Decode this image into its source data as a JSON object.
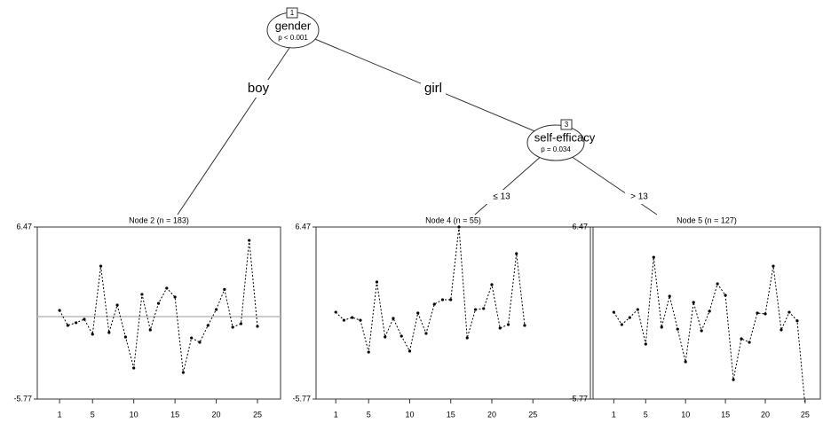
{
  "nodes": [
    {
      "id": "1",
      "label": "gender",
      "p": "p < 0.001"
    },
    {
      "id": "3",
      "label": "self-efficacy",
      "p": "p = 0.034"
    }
  ],
  "edges": [
    {
      "label": "boy"
    },
    {
      "label": "girl"
    },
    {
      "label": "≤ 13"
    },
    {
      "label": "> 13"
    }
  ],
  "chart_data": [
    {
      "type": "line",
      "title": "Node 2 (n = 183)",
      "color": "#000000",
      "x": [
        1,
        2,
        3,
        4,
        5,
        6,
        7,
        8,
        9,
        10,
        11,
        12,
        13,
        14,
        15,
        16,
        17,
        18,
        19,
        20,
        21,
        22,
        23,
        24,
        25
      ],
      "values": [
        0.54,
        -0.53,
        -0.34,
        -0.09,
        -1.16,
        3.69,
        -1.04,
        0.92,
        -1.35,
        -3.56,
        1.68,
        -0.85,
        1.04,
        2.12,
        1.49,
        -3.88,
        -1.42,
        -1.73,
        -0.53,
        0.6,
        2.03,
        -0.66,
        -0.41,
        5.52,
        -0.6
      ],
      "reference_line": 0.1,
      "xlim": [
        -1.7,
        27.8
      ],
      "ylim": [
        -5.77,
        6.47
      ],
      "xticks": [
        1,
        5,
        10,
        15,
        20,
        25
      ],
      "yticks": [
        -5.77,
        6.47
      ]
    },
    {
      "type": "line",
      "title": "Node 4 (n = 55)",
      "color": "#000000",
      "x": [
        1,
        2,
        3,
        4,
        5,
        6,
        7,
        8,
        9,
        10,
        11,
        12,
        13,
        14,
        15,
        16,
        17,
        18,
        19,
        20,
        21,
        22,
        23,
        24
      ],
      "values": [
        0.41,
        -0.16,
        0.03,
        -0.16,
        -2.43,
        2.56,
        -1.35,
        -0.03,
        -1.29,
        -2.36,
        0.35,
        -1.1,
        0.98,
        1.3,
        1.3,
        6.47,
        -1.42,
        0.6,
        0.67,
        2.37,
        -0.72,
        -0.47,
        4.58,
        -0.53
      ],
      "xlim": [
        -1.4,
        32
      ],
      "ylim": [
        -5.77,
        6.47
      ],
      "xticks": [
        1,
        5,
        10,
        15,
        20,
        25
      ],
      "yticks": [
        -5.77,
        6.47
      ]
    },
    {
      "type": "line",
      "title": "Node 5 (n = 127)",
      "color": "#000000",
      "x": [
        1,
        2,
        3,
        4,
        5,
        6,
        7,
        8,
        9,
        10,
        11,
        12,
        13,
        14,
        15,
        16,
        17,
        18,
        19,
        20,
        21,
        22,
        23,
        24,
        25
      ],
      "values": [
        0.41,
        -0.47,
        0.03,
        0.6,
        -1.86,
        4.32,
        -0.66,
        1.55,
        -0.79,
        -3.12,
        1.11,
        -0.91,
        0.48,
        2.43,
        1.61,
        -4.39,
        -1.48,
        -1.73,
        0.35,
        0.29,
        3.69,
        -0.85,
        0.41,
        -0.2,
        -6.3
      ],
      "xlim": [
        -1.6,
        26.9
      ],
      "ylim": [
        -5.77,
        6.47
      ],
      "xticks": [
        1,
        5,
        10,
        15,
        20,
        25
      ],
      "yticks": [
        -5.77,
        6.47
      ]
    }
  ]
}
